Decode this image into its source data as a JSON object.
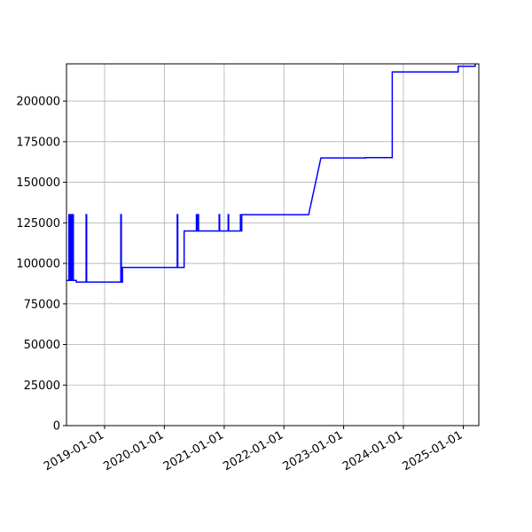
{
  "chart_data": {
    "type": "line",
    "title": "",
    "xlabel": "",
    "ylabel": "",
    "grid": true,
    "xlim": [
      "2018-05-13",
      "2025-04-06"
    ],
    "ylim": [
      0,
      223000
    ],
    "x_ticks": [
      "2019-01-01",
      "2020-01-01",
      "2021-01-01",
      "2022-01-01",
      "2023-01-01",
      "2024-01-01",
      "2025-01-01"
    ],
    "y_ticks": [
      0,
      25000,
      50000,
      75000,
      100000,
      125000,
      150000,
      175000,
      200000
    ],
    "y_tick_labels": [
      "0",
      "25000",
      "50000",
      "75000",
      "100000",
      "125000",
      "150000",
      "175000",
      "200000"
    ],
    "colors": {
      "line": "#0000ff",
      "grid": "#b0b0b0",
      "axes": "#000000"
    },
    "series": [
      {
        "x": [
          "2018-05-13",
          "2018-05-28",
          "2018-05-28",
          "2018-05-31",
          "2018-05-31",
          "2018-06-04",
          "2018-06-04",
          "2018-06-08",
          "2018-06-08",
          "2018-06-12",
          "2018-06-12",
          "2018-06-16",
          "2018-06-16",
          "2018-06-20",
          "2018-06-20",
          "2018-06-24",
          "2018-06-24",
          "2018-07-12",
          "2018-07-12",
          "2018-09-10",
          "2018-09-10",
          "2018-09-13",
          "2018-09-13",
          "2018-11-01",
          "2018-11-01",
          "2019-04-10",
          "2019-04-10",
          "2019-04-13",
          "2019-04-13",
          "2019-04-20",
          "2019-04-20",
          "2019-04-25",
          "2019-04-25",
          "2020-03-20",
          "2020-03-20",
          "2020-03-23",
          "2020-03-23",
          "2020-05-01",
          "2020-05-01",
          "2020-07-15",
          "2020-07-15",
          "2020-07-18",
          "2020-07-18",
          "2020-07-25",
          "2020-07-25",
          "2020-07-28",
          "2020-07-28",
          "2020-12-01",
          "2020-12-01",
          "2020-12-04",
          "2020-12-04",
          "2021-01-25",
          "2021-01-25",
          "2021-01-28",
          "2021-01-28",
          "2021-04-10",
          "2021-04-10",
          "2021-04-14",
          "2021-04-14",
          "2021-04-18",
          "2021-04-18",
          "2021-04-22",
          "2022-06-01",
          "2022-08-15",
          "2023-05-15",
          "2023-05-15",
          "2023-10-25",
          "2023-10-25",
          "2024-12-01",
          "2024-12-01",
          "2025-03-15",
          "2025-03-15"
        ],
        "y": [
          89500,
          89500,
          130000,
          130000,
          89500,
          89500,
          130000,
          130000,
          89500,
          89500,
          130000,
          130000,
          89500,
          89500,
          130000,
          130000,
          89500,
          89500,
          88500,
          88500,
          130000,
          130000,
          88500,
          88500,
          88500,
          88500,
          130000,
          130000,
          88500,
          88500,
          97500,
          97500,
          97500,
          97500,
          130000,
          130000,
          97500,
          97500,
          120000,
          120000,
          130000,
          130000,
          120000,
          120000,
          130000,
          130000,
          120000,
          120000,
          130000,
          130000,
          120000,
          120000,
          130000,
          130000,
          120000,
          120000,
          130000,
          130000,
          120000,
          120000,
          130000,
          130000,
          130000,
          165000,
          165000,
          165200,
          165200,
          218000,
          218000,
          221500,
          221500,
          223500
        ]
      }
    ]
  }
}
